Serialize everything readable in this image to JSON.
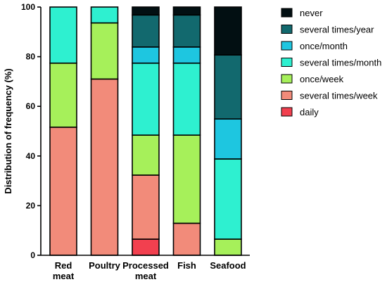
{
  "chart_data": {
    "type": "bar",
    "stacked": true,
    "title": "",
    "xlabel": "",
    "ylabel": "Distribution of frequency (%)",
    "ylim": [
      0,
      100
    ],
    "yticks": [
      0,
      20,
      40,
      60,
      80,
      100
    ],
    "grid": false,
    "legend_position": "right",
    "categories": [
      [
        "Red",
        "meat"
      ],
      [
        "Poultry"
      ],
      [
        "Processed",
        "meat"
      ],
      [
        "Fish"
      ],
      [
        "Seafood"
      ]
    ],
    "series": [
      {
        "name": "daily",
        "color": "#f2404f",
        "values": [
          0,
          0,
          6.5,
          0,
          0
        ]
      },
      {
        "name": "several times/week",
        "color": "#f28b7a",
        "values": [
          51.6,
          71.0,
          25.8,
          12.9,
          0
        ]
      },
      {
        "name": "once/week",
        "color": "#a6f05a",
        "values": [
          25.8,
          22.6,
          16.1,
          35.5,
          6.5
        ]
      },
      {
        "name": "several times/month",
        "color": "#2ef0d0",
        "values": [
          22.6,
          6.4,
          29.0,
          29.0,
          32.3
        ]
      },
      {
        "name": "once/month",
        "color": "#1ec6e0",
        "values": [
          0,
          0,
          6.5,
          6.5,
          16.1
        ]
      },
      {
        "name": "several times/year",
        "color": "#12696e",
        "values": [
          0,
          0,
          12.9,
          12.9,
          25.8
        ]
      },
      {
        "name": "never",
        "color": "#020f12",
        "values": [
          0,
          0,
          3.2,
          3.2,
          19.3
        ]
      }
    ]
  }
}
